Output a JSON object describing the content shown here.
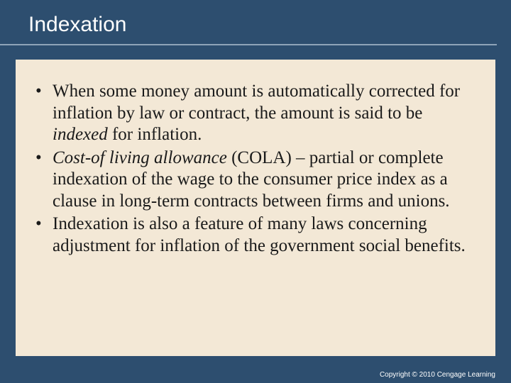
{
  "slide": {
    "title": "Indexation",
    "bullets": [
      {
        "pre": "When some money amount is automatically corrected for inflation by law or contract, the amount is said to be ",
        "em": "indexed",
        "post": " for inflation."
      },
      {
        "em": "Cost-of living allowance",
        "post": " (COLA) – partial or complete indexation of the wage to the consumer price index as a clause in long-term contracts between firms and unions."
      },
      {
        "pre": "Indexation is also a feature of many laws concerning adjustment for inflation of the government social benefits."
      }
    ],
    "footer": "Copyright © 2010 Cengage Learning"
  },
  "style": {
    "background_color": "#2d4e6f",
    "panel_color": "#f3e8d6",
    "title_color": "#ffffff",
    "text_color": "#1a1a1a",
    "divider_color": "#8fa4b8",
    "title_font": "Arial",
    "body_font": "Times New Roman",
    "title_fontsize": 30,
    "body_fontsize": 25,
    "footer_fontsize": 10
  }
}
